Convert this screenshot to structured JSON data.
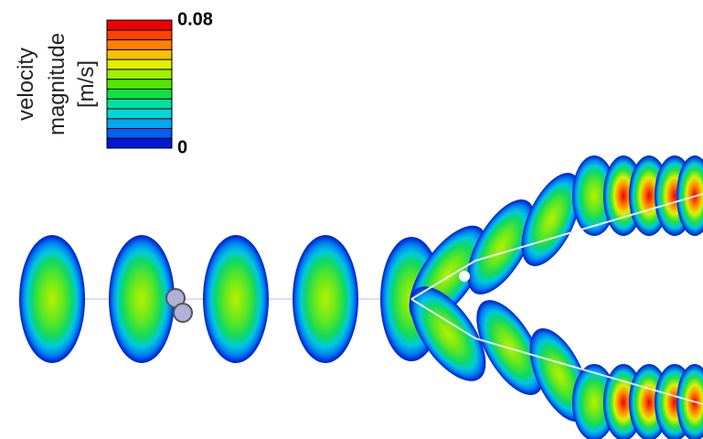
{
  "colorbar": {
    "label": [
      "velocity",
      "magnitude",
      "[m/s]"
    ],
    "min": 0,
    "max": 0.08,
    "colors": [
      "#0018d8",
      "#0060f0",
      "#00a8f0",
      "#00d8d8",
      "#00e0a0",
      "#10e040",
      "#50e800",
      "#a0ee00",
      "#e0f000",
      "#f8c000",
      "#ff8000",
      "#ff4000",
      "#f00000"
    ]
  }
}
